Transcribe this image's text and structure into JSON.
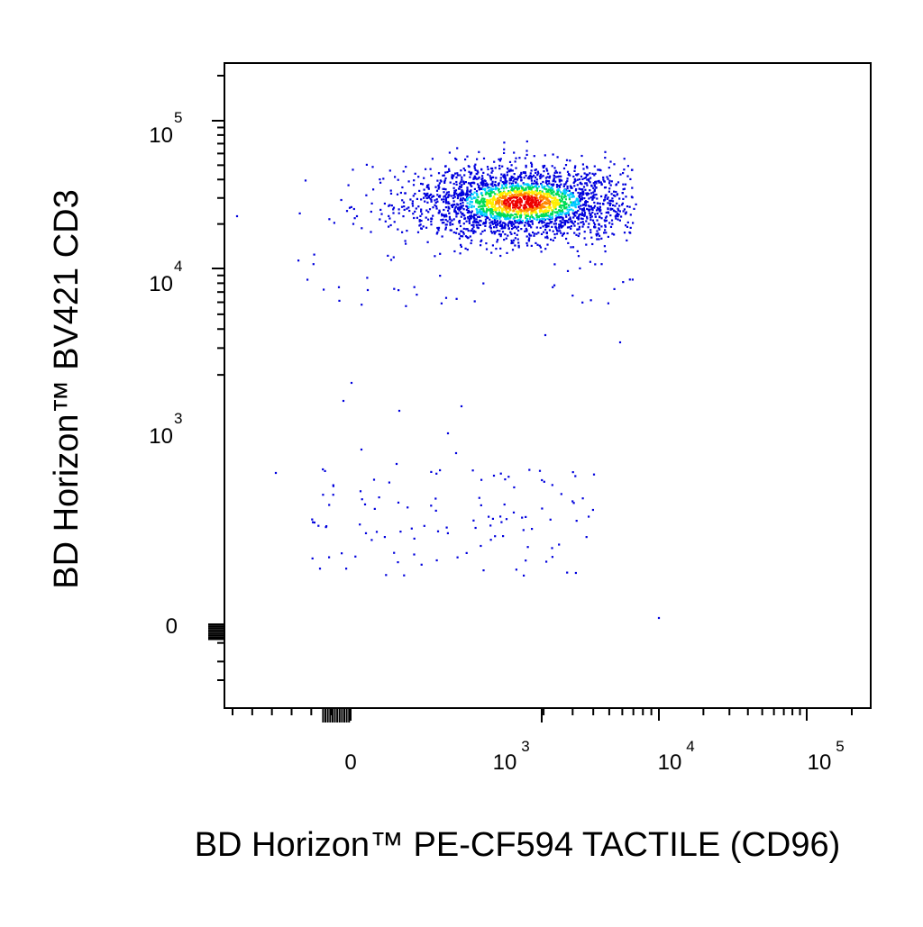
{
  "chart_data": {
    "type": "scatter",
    "plot_style": "flow cytometry pseudocolor density dot plot (biexponential axes)",
    "xlabel": "BD Horizon™ PE-CF594 TACTILE (CD96)",
    "ylabel": "BD Horizon™ BV421 CD3",
    "x_scale": "biexponential",
    "y_scale": "biexponential",
    "xlim": [
      -600,
      200000
    ],
    "ylim": [
      -300,
      200000
    ],
    "grid": false,
    "legend": "none",
    "x_ticks": [
      {
        "base": "0",
        "exp": ""
      },
      {
        "base": "10",
        "exp": "3"
      },
      {
        "base": "10",
        "exp": "4"
      },
      {
        "base": "10",
        "exp": "5"
      }
    ],
    "y_ticks": [
      {
        "base": "0",
        "exp": ""
      },
      {
        "base": "10",
        "exp": "3"
      },
      {
        "base": "10",
        "exp": "4"
      },
      {
        "base": "10",
        "exp": "5"
      }
    ],
    "density_colors": [
      "#0000dd",
      "#00ccff",
      "#00dd55",
      "#ffee00",
      "#ff8800",
      "#ee0000"
    ],
    "populations": [
      {
        "description": "CD3+ cluster",
        "center": [
          1500,
          28000
        ],
        "x_range": [
          -400,
          7000
        ],
        "y_range": [
          6000,
          80000
        ]
      },
      {
        "description": "CD3- cluster",
        "center": [
          300,
          0
        ],
        "x_range": [
          -500,
          4000
        ],
        "y_range": [
          -250,
          500
        ]
      }
    ]
  }
}
